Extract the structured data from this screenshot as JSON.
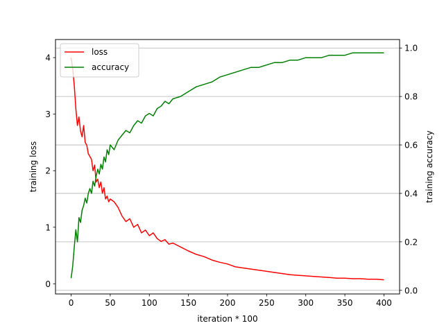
{
  "chart_data": {
    "type": "line",
    "title": "",
    "xlabel": "iteration * 100",
    "ylabel_left": "training loss",
    "ylabel_right": "training accuracy",
    "xlim": [
      -20,
      420
    ],
    "ylim_left": [
      -0.18,
      4.32
    ],
    "ylim_right": [
      -0.015,
      1.035
    ],
    "x_ticks": [
      0,
      50,
      100,
      150,
      200,
      250,
      300,
      350,
      400
    ],
    "x_tick_labels": [
      "0",
      "50",
      "100",
      "150",
      "200",
      "250",
      "300",
      "350",
      "400"
    ],
    "y_left_ticks": [
      0,
      1,
      2,
      3,
      4
    ],
    "y_left_tick_labels": [
      "0",
      "1",
      "2",
      "3",
      "4"
    ],
    "y_right_ticks": [
      0.0,
      0.2,
      0.4,
      0.6,
      0.8,
      1.0
    ],
    "y_right_tick_labels": [
      "0.0",
      "0.2",
      "0.4",
      "0.6",
      "0.8",
      "1.0"
    ],
    "grid": "horizontal lines at right-axis ticks",
    "legend_position": "top-left",
    "series": [
      {
        "name": "loss",
        "axis": "left",
        "color": "#ff0000",
        "x": [
          0,
          2,
          4,
          6,
          8,
          10,
          12,
          14,
          16,
          18,
          20,
          22,
          24,
          26,
          28,
          30,
          32,
          34,
          36,
          38,
          40,
          42,
          44,
          46,
          48,
          50,
          55,
          60,
          65,
          70,
          75,
          80,
          85,
          90,
          95,
          100,
          105,
          110,
          115,
          120,
          125,
          130,
          140,
          150,
          160,
          170,
          180,
          190,
          200,
          210,
          220,
          230,
          240,
          250,
          260,
          270,
          280,
          290,
          300,
          310,
          320,
          330,
          340,
          350,
          360,
          370,
          380,
          390,
          400
        ],
        "values": [
          4.0,
          3.8,
          3.5,
          3.1,
          2.8,
          2.95,
          2.7,
          2.6,
          2.8,
          2.5,
          2.45,
          2.3,
          2.25,
          2.2,
          2.0,
          2.1,
          1.8,
          1.85,
          1.7,
          1.8,
          1.6,
          1.7,
          1.5,
          1.55,
          1.45,
          1.5,
          1.45,
          1.35,
          1.2,
          1.1,
          1.15,
          1.0,
          1.05,
          0.9,
          0.95,
          0.85,
          0.9,
          0.8,
          0.75,
          0.78,
          0.7,
          0.72,
          0.65,
          0.58,
          0.52,
          0.48,
          0.42,
          0.38,
          0.35,
          0.3,
          0.28,
          0.26,
          0.24,
          0.22,
          0.2,
          0.18,
          0.16,
          0.15,
          0.14,
          0.13,
          0.12,
          0.11,
          0.1,
          0.1,
          0.09,
          0.09,
          0.08,
          0.08,
          0.07
        ]
      },
      {
        "name": "accuracy",
        "axis": "right",
        "color": "#008000",
        "x": [
          0,
          2,
          4,
          6,
          8,
          10,
          12,
          14,
          16,
          18,
          20,
          22,
          24,
          26,
          28,
          30,
          32,
          34,
          36,
          38,
          40,
          42,
          44,
          46,
          48,
          50,
          55,
          60,
          65,
          70,
          75,
          80,
          85,
          90,
          95,
          100,
          105,
          110,
          115,
          120,
          125,
          130,
          140,
          150,
          160,
          170,
          180,
          190,
          200,
          210,
          220,
          230,
          240,
          250,
          260,
          270,
          280,
          290,
          300,
          310,
          320,
          330,
          340,
          350,
          360,
          370,
          380,
          390,
          400
        ],
        "values": [
          0.05,
          0.1,
          0.18,
          0.25,
          0.2,
          0.3,
          0.28,
          0.33,
          0.35,
          0.38,
          0.36,
          0.4,
          0.42,
          0.4,
          0.45,
          0.43,
          0.47,
          0.5,
          0.48,
          0.52,
          0.5,
          0.55,
          0.53,
          0.58,
          0.56,
          0.6,
          0.58,
          0.62,
          0.64,
          0.66,
          0.65,
          0.68,
          0.7,
          0.69,
          0.72,
          0.73,
          0.72,
          0.75,
          0.76,
          0.78,
          0.77,
          0.79,
          0.8,
          0.82,
          0.84,
          0.85,
          0.86,
          0.88,
          0.89,
          0.9,
          0.91,
          0.92,
          0.92,
          0.93,
          0.94,
          0.94,
          0.95,
          0.95,
          0.96,
          0.96,
          0.96,
          0.97,
          0.97,
          0.97,
          0.98,
          0.98,
          0.98,
          0.98,
          0.98
        ]
      }
    ]
  }
}
